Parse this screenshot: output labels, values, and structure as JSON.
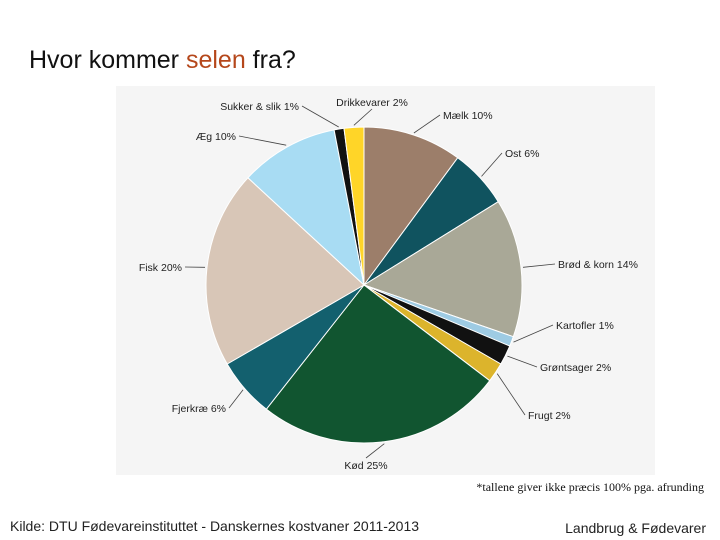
{
  "slide": {
    "title_pre": "Hvor kommer ",
    "title_accent": "selen",
    "title_post": " fra?",
    "footnote": "*tallene giver ikke præcis 100% pga. afrunding",
    "source": "Kilde: DTU Fødevareinstituttet - Danskernes kostvaner 2011-2013",
    "brand": "Landbrug & Fødevarer"
  },
  "chart_data": {
    "type": "pie",
    "title": "",
    "unit": "%",
    "slices": [
      {
        "label": "Mælk 10%",
        "name": "Mælk",
        "value": 10,
        "color": "#9c7e6a"
      },
      {
        "label": "Ost 6%",
        "name": "Ost",
        "value": 6,
        "color": "#10535f"
      },
      {
        "label": "Brød & korn 14%",
        "name": "Brød & korn",
        "value": 14,
        "color": "#a9a897"
      },
      {
        "label": "Kartofler 1%",
        "name": "Kartofler",
        "value": 1,
        "color": "#9ecbe3"
      },
      {
        "label": "Grøntsager 2%",
        "name": "Grøntsager",
        "value": 2,
        "color": "#111111"
      },
      {
        "label": "Frugt 2%",
        "name": "Frugt",
        "value": 2,
        "color": "#dcb42c"
      },
      {
        "label": "Kød 25%",
        "name": "Kød",
        "value": 25,
        "color": "#115530"
      },
      {
        "label": "Fjerkræ 6%",
        "name": "Fjerkræ",
        "value": 6,
        "color": "#13606e"
      },
      {
        "label": "Fisk 20%",
        "name": "Fisk",
        "value": 20,
        "color": "#d8c6b7"
      },
      {
        "label": "Æg 10%",
        "name": "Æg",
        "value": 10,
        "color": "#a8dcf3"
      },
      {
        "label": "Sukker & slik 1%",
        "name": "Sukker & slik",
        "value": 1,
        "color": "#111111"
      },
      {
        "label": "Drikkevarer 2%",
        "name": "Drikkevarer",
        "value": 2,
        "color": "#ffd528"
      }
    ]
  }
}
